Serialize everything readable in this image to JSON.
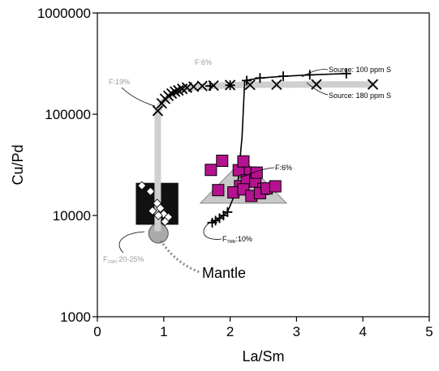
{
  "chart_data": {
    "type": "scatter",
    "title": "",
    "xlabel": "La/Sm",
    "ylabel": "Cu/Pd",
    "xlim": [
      0,
      5
    ],
    "ylim": [
      1000,
      1000000
    ],
    "y_scale": "log",
    "x_ticks": [
      0,
      1,
      2,
      3,
      4,
      5
    ],
    "y_ticks": [
      1000,
      10000,
      100000,
      1000000
    ],
    "x_tick_labels": [
      "0",
      "1",
      "2",
      "3",
      "4",
      "5"
    ],
    "y_tick_labels": [
      "1000",
      "10000",
      "100000",
      "1000000"
    ],
    "grid": false,
    "annotations": {
      "source_100": "Source:  100  ppm  S",
      "source_180": "Source:  180  ppm  S",
      "f6_gray": "F:6%",
      "f19": "F:19%",
      "f6_black": "F:6%",
      "ftmr_prefix": "F",
      "ftmr_sub": "TMR",
      "ftmr_suffix": ":10%",
      "fcmr_prefix": "F",
      "fcmr_sub": "CMR",
      "fcmr_suffix": ":20-25%",
      "mantle": "Mantle"
    },
    "series": [
      {
        "marker": "x",
        "color": "#000000",
        "x": [
          0.91,
          0.97,
          1.02,
          1.07,
          1.12,
          1.17,
          1.22,
          1.28,
          1.35,
          1.45,
          1.58,
          1.75,
          2.0,
          2.3,
          2.7,
          3.3,
          4.15
        ],
        "y": [
          108000,
          128000,
          142000,
          152000,
          160000,
          167000,
          172000,
          178000,
          183000,
          187000,
          190000,
          192000,
          194000,
          195000,
          196000,
          197000,
          197000
        ]
      },
      {
        "marker": "plus",
        "color": "#000000",
        "x": [
          1.7,
          2.0,
          2.25,
          2.45,
          2.8,
          3.2,
          3.75
        ],
        "y": [
          190000,
          193000,
          215000,
          228000,
          237000,
          245000,
          252000
        ]
      },
      {
        "marker": "plus",
        "color": "#000000",
        "x": [
          1.73,
          1.78,
          1.84,
          1.9,
          1.96
        ],
        "y": [
          8500,
          8900,
          9400,
          10000,
          10800
        ]
      },
      {
        "marker": "diamond",
        "color": "#ffffff",
        "x": [
          0.67,
          0.8,
          0.9,
          0.95,
          0.83,
          1.0,
          0.92,
          1.07,
          1.02
        ],
        "y": [
          19700,
          17300,
          13200,
          11800,
          11100,
          10300,
          10000,
          9650,
          8700
        ]
      },
      {
        "marker": "square",
        "color": "#b5128f",
        "x": [
          1.71,
          1.88,
          2.13,
          2.2,
          2.3,
          2.15,
          2.25,
          2.38,
          2.4,
          2.5,
          1.82,
          2.05,
          2.2,
          2.32,
          2.45,
          2.55,
          2.68
        ],
        "y": [
          28200,
          34700,
          28000,
          34200,
          26500,
          19500,
          22200,
          21600,
          26500,
          18300,
          17800,
          16900,
          18100,
          15600,
          16600,
          18500,
          19400
        ]
      }
    ],
    "fields": [
      {
        "shape": "rect",
        "color": "#111111",
        "x_range": [
          0.58,
          1.22
        ],
        "y_range": [
          8100,
          21000
        ]
      },
      {
        "shape": "triangle",
        "color": "#c8c8c8",
        "vertices": [
          [
            2.2,
            36000
          ],
          [
            1.55,
            13200
          ],
          [
            2.85,
            13200
          ]
        ]
      },
      {
        "shape": "circle",
        "color": "#aaaaaa",
        "x": 0.92,
        "y": 6650
      }
    ],
    "curves": [
      {
        "style": "gray-band",
        "x": [
          0.91,
          0.91,
          0.97,
          1.1,
          1.3,
          1.6,
          2.0,
          2.6,
          3.3,
          4.15
        ],
        "y": [
          7000,
          108000,
          128000,
          155000,
          178000,
          188000,
          194000,
          196000,
          197000,
          197000
        ]
      },
      {
        "style": "black-line",
        "x": [
          1.73,
          1.85,
          1.96,
          2.05,
          2.12,
          2.18,
          2.22,
          2.45,
          2.8,
          3.2,
          3.75
        ],
        "y": [
          8500,
          9500,
          10800,
          15000,
          22000,
          60000,
          215000,
          228000,
          237000,
          245000,
          252000
        ]
      }
    ]
  }
}
